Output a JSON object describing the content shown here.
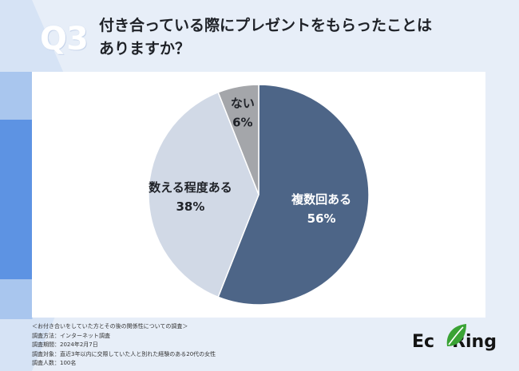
{
  "question_number": "Q3",
  "title_line1": "付き合っている際にプレゼントをもらったことは",
  "title_line2": "ありますか？",
  "chart_data": {
    "type": "pie",
    "slices": [
      {
        "label": "複数回ある",
        "value": 56,
        "color": "#4d6587",
        "text_color": "#ffffff"
      },
      {
        "label": "数える程度ある",
        "value": 38,
        "color": "#d1d9e6",
        "text_color": "#1f2228"
      },
      {
        "label": "ない",
        "value": 6,
        "color": "#a4a6aa",
        "text_color": "#1f2228"
      }
    ],
    "start": "top",
    "direction": "clockwise",
    "value_suffix": "%"
  },
  "notes": {
    "heading": "＜お付き合いをしていた方とその後の関係性についての調査＞",
    "lines": [
      "調査方法：インターネット調査",
      "調査期間：2024年2月7日",
      "調査対象：直近3年以内に交際していた人と別れた経験のある20代の女性",
      "調査人数：100名"
    ]
  },
  "logo": {
    "text_before": "Ec",
    "text_after": "Ring",
    "leaf_color": "#3aa335"
  }
}
